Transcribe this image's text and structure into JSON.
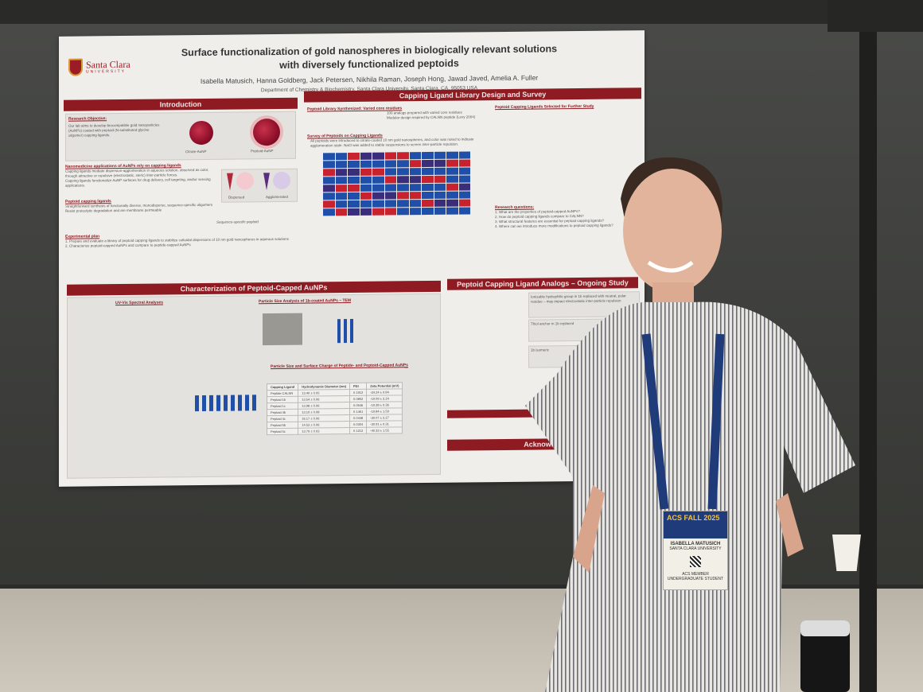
{
  "poster": {
    "logo": {
      "name": "Santa Clara",
      "sub": "UNIVERSITY"
    },
    "title_line1": "Surface functionalization of gold nanospheres in biologically relevant solutions",
    "title_line2": "with diversely functionalized peptoids",
    "authors": "Isabella Matusich, Hanna Goldberg, Jack Petersen, Nikhila Raman, Joseph Hong, Jawad Javed, Amelia A. Fuller",
    "department": "Department of Chemistry & Biochemistry, Santa Clara University, Santa Clara, CA, 95053 USA",
    "sections": {
      "introduction": "Introduction",
      "capping": "Capping Ligand Library Design and Survey",
      "characterization": "Characterization of Peptoid-Capped AuNPs",
      "analogs": "Peptoid Capping Ligand Analogs – Ongoing Study",
      "acknowledgements": "Acknowled"
    },
    "intro": {
      "objective_head": "Research Objective:",
      "objective": "Our lab aims to develop biocompatible gold nanoparticles (AuNPs) coated with peptoid (N-substituted glycine oligomer) capping ligands.",
      "citrate_label": "Citrate-AuNP",
      "peptoid_label": "Peptoid-AuNP",
      "nano_head": "Nanomedicine applications of AuNPs rely on capping ligands",
      "nano_b1": "Capping ligands mediate dispersion-agglomeration in aqueous solution, observed as color, through attractive or repulsive (electrostatic, steric) inter-particle forces.",
      "nano_b2": "Capping ligands functionalize AuNP surfaces for drug delivery, cell targeting, and/or sensing applications.",
      "dispersed": "Dispersed",
      "agglomerated": "Agglomerated",
      "peptoid_head": "Peptoid capping ligands",
      "peptoid_b1": "Straightforward synthesis of functionally diverse, monodisperse, sequence-specific oligomers",
      "peptoid_b2": "Resist proteolytic degradation and are membrane permeable",
      "seq_label": "Sequence-specific peptoid",
      "plan_head": "Experimental plan",
      "plan_1": "1. Prepare and evaluate a library of peptoid capping ligands to stabilize colloidal dispersions of 10 nm gold nanospheres in aqueous solutions",
      "plan_2": "2. Characterize peptoid-capped AuNPs and compare to peptide-capped AuNPs"
    },
    "capping": {
      "library_head": "Peptoid Library Synthesized: Varied core residues",
      "library_b1": "100 analogs prepared with varied core residues",
      "library_b2": "Modular design inspired by CALNN peptide (Levy 2004)",
      "survey_head": "Survey of Peptoids on Capping Ligands",
      "survey_text": "All peptoids were introduced to citrate-coated 10 nm gold nanospheres, and color was noted to indicate agglomeration state. NaCl was added to stable suspensions to screen inter-particle repulsion.",
      "selected_head": "Peptoid Capping Ligands Selected for Further Study",
      "questions_head": "Research questions:",
      "q1": "1. What are the properties of peptoid-capped AuNPs?",
      "q2": "2. How do peptoid capping ligands compare to CALNN?",
      "q3": "3. What structural features are essential for peptoid capping ligands?",
      "q4": "4. Where can we introduce more modifications to peptoid capping ligands?"
    },
    "characterization": {
      "uvvis_head": "UV-Vis Spectral Analyses",
      "tem_head": "Particle Size Analysis of 1b-coated AuNPs – TEM",
      "size_head": "Particle Size and Surface Charge of Peptide- and Peptoid-Capped AuNPs",
      "table_header": [
        "Capping Ligand",
        "Hydrodynamic Diameter (nm)",
        "PDI",
        "Zeta Potential (mV)"
      ],
      "table_rows": [
        [
          "Peptide CALNN",
          "13.40 ± 0.05",
          "0.1912",
          "-24.24 ± 0.84"
        ],
        [
          "Peptoid 1b",
          "13.54 ± 0.06",
          "0.0852",
          "-19.09 ± 2.24"
        ],
        [
          "Peptoid 1c",
          "13.98 ± 0.06",
          "0.0546",
          "-19.28 ± 0.36"
        ],
        [
          "Peptoid 4b",
          "13.10 ± 0.08",
          "0.1461",
          "-19.84 ± 1.59"
        ],
        [
          "Peptoid 4c",
          "16.17 ± 0.06",
          "0.0448",
          "-30.07 ± 2.27"
        ],
        [
          "Peptoid 5b",
          "14.53 ± 0.06",
          "0.0304",
          "-30.91 ± 0.31"
        ],
        [
          "Peptoid 5c",
          "13.79 ± 0.03",
          "0.1212",
          "-40.33 ± 1.55"
        ]
      ]
    },
    "analogs": {
      "a1": "Ionizable hydrophilic group in 1b replaced with neutral, polar residue – may impact electrostatic inter-particle repulsion",
      "a2": "Thiol anchor in 1b replaced",
      "a3": "1b isomeric"
    }
  },
  "badge": {
    "event": "ACS FALL 2025",
    "name": "ISABELLA MATUSICH",
    "org": "SANTA CLARA UNIVERSITY",
    "type": "ACS MEMBER",
    "role": "UNDERGRADUATE STUDENT"
  },
  "colors": {
    "poster_accent": "#8e1b22",
    "wall": "#3f403c",
    "badge_blue": "#1f3b7a"
  }
}
